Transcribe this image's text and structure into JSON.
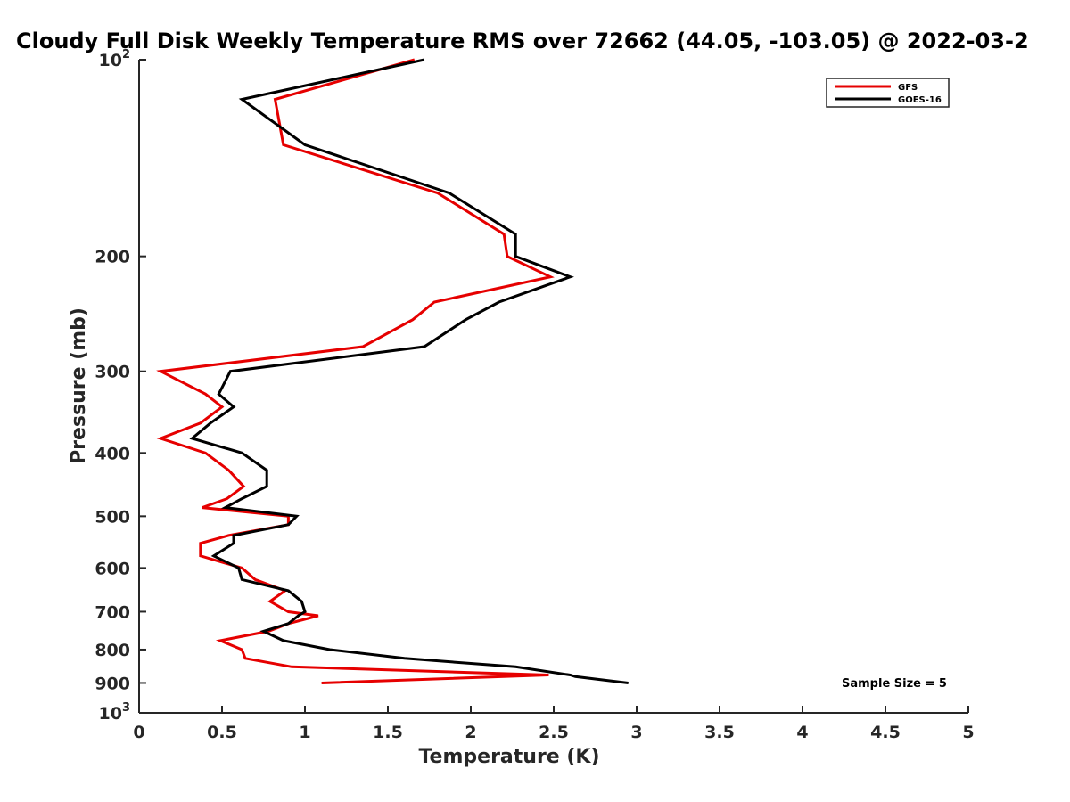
{
  "chart_data": {
    "type": "line",
    "title": "Cloudy Full Disk Weekly Temperature RMS over 72662 (44.05, -103.05) @ 2022-03-2",
    "xlabel": "Temperature (K)",
    "ylabel": "Pressure (mb)",
    "xlim": [
      0,
      5
    ],
    "ylim": [
      100,
      1000
    ],
    "y_scale": "log",
    "y_reversed": true,
    "x_ticks": [
      0,
      0.5,
      1,
      1.5,
      2,
      2.5,
      3,
      3.5,
      4,
      4.5,
      5
    ],
    "x_tick_labels": [
      "0",
      "0.5",
      "1",
      "1.5",
      "2",
      "2.5",
      "3",
      "3.5",
      "4",
      "4.5",
      "5"
    ],
    "y_ticks": [
      100,
      200,
      300,
      400,
      500,
      600,
      700,
      800,
      900,
      1000
    ],
    "y_tick_labels": [
      {
        "base": "10",
        "sup": "2"
      },
      {
        "base": "200",
        "sup": ""
      },
      {
        "base": "300",
        "sup": ""
      },
      {
        "base": "400",
        "sup": ""
      },
      {
        "base": "500",
        "sup": ""
      },
      {
        "base": "600",
        "sup": ""
      },
      {
        "base": "700",
        "sup": ""
      },
      {
        "base": "800",
        "sup": ""
      },
      {
        "base": "900",
        "sup": ""
      },
      {
        "base": "10",
        "sup": "3"
      }
    ],
    "grid": false,
    "legend_position": "top-right",
    "series": [
      {
        "name": "GFS",
        "color": "#e60000",
        "points": [
          [
            1.66,
            100
          ],
          [
            0.82,
            115
          ],
          [
            0.87,
            135
          ],
          [
            1.8,
            160
          ],
          [
            2.2,
            185
          ],
          [
            2.22,
            200
          ],
          [
            2.48,
            215
          ],
          [
            1.78,
            235
          ],
          [
            1.65,
            250
          ],
          [
            1.35,
            275
          ],
          [
            0.13,
            300
          ],
          [
            0.4,
            325
          ],
          [
            0.5,
            340
          ],
          [
            0.37,
            360
          ],
          [
            0.13,
            380
          ],
          [
            0.4,
            400
          ],
          [
            0.54,
            425
          ],
          [
            0.63,
            450
          ],
          [
            0.53,
            470
          ],
          [
            0.38,
            485
          ],
          [
            0.9,
            500
          ],
          [
            0.9,
            515
          ],
          [
            0.54,
            535
          ],
          [
            0.37,
            550
          ],
          [
            0.37,
            575
          ],
          [
            0.62,
            600
          ],
          [
            0.7,
            625
          ],
          [
            0.88,
            650
          ],
          [
            0.79,
            675
          ],
          [
            0.9,
            700
          ],
          [
            1.08,
            710
          ],
          [
            0.9,
            730
          ],
          [
            0.78,
            750
          ],
          [
            0.49,
            775
          ],
          [
            0.62,
            800
          ],
          [
            0.64,
            825
          ],
          [
            0.92,
            850
          ],
          [
            2.47,
            875
          ],
          [
            1.1,
            900
          ]
        ]
      },
      {
        "name": "GOES-16",
        "color": "#000000",
        "points": [
          [
            1.72,
            100
          ],
          [
            0.62,
            115
          ],
          [
            1.0,
            135
          ],
          [
            1.87,
            160
          ],
          [
            2.27,
            185
          ],
          [
            2.27,
            200
          ],
          [
            2.6,
            215
          ],
          [
            2.17,
            235
          ],
          [
            1.97,
            250
          ],
          [
            1.72,
            275
          ],
          [
            0.55,
            300
          ],
          [
            0.48,
            325
          ],
          [
            0.57,
            340
          ],
          [
            0.43,
            360
          ],
          [
            0.32,
            380
          ],
          [
            0.62,
            400
          ],
          [
            0.77,
            425
          ],
          [
            0.77,
            450
          ],
          [
            0.62,
            470
          ],
          [
            0.52,
            485
          ],
          [
            0.95,
            500
          ],
          [
            0.9,
            515
          ],
          [
            0.57,
            535
          ],
          [
            0.57,
            550
          ],
          [
            0.45,
            575
          ],
          [
            0.6,
            600
          ],
          [
            0.62,
            625
          ],
          [
            0.9,
            650
          ],
          [
            0.98,
            675
          ],
          [
            1.0,
            700
          ],
          [
            0.96,
            710
          ],
          [
            0.9,
            730
          ],
          [
            0.75,
            750
          ],
          [
            0.87,
            775
          ],
          [
            1.15,
            800
          ],
          [
            1.6,
            825
          ],
          [
            2.27,
            850
          ],
          [
            2.6,
            875
          ],
          [
            2.63,
            880
          ],
          [
            2.95,
            900
          ]
        ]
      }
    ],
    "annotations": [
      "Sample Size = 5"
    ]
  }
}
